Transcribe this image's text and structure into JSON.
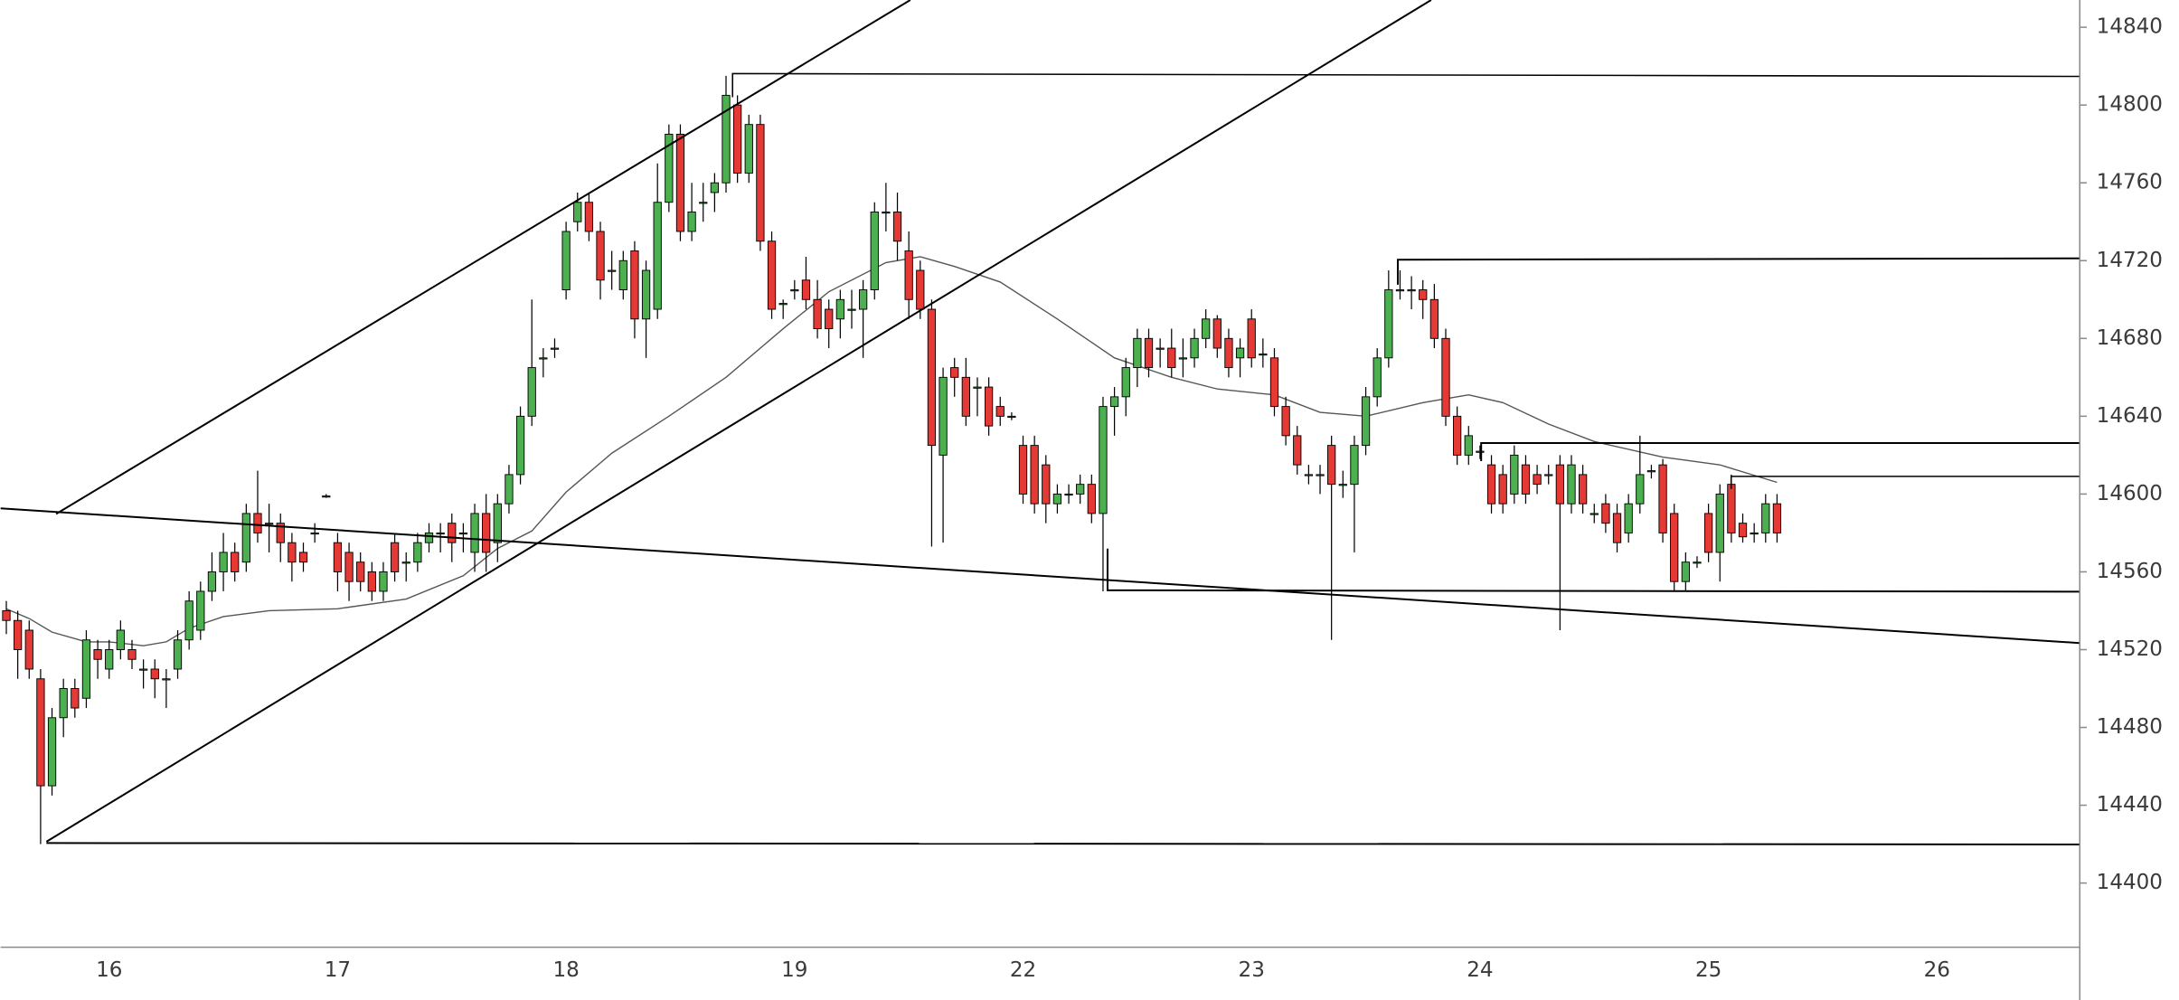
{
  "chart_data": {
    "type": "candlestick",
    "categories": [
      null,
      null,
      null,
      null,
      null,
      null,
      null,
      null,
      null,
      "16",
      null,
      null,
      null,
      null,
      null,
      null,
      null,
      null,
      null,
      null,
      null,
      null,
      null,
      null,
      null,
      null,
      null,
      null,
      null,
      "17",
      null,
      null,
      null,
      null,
      null,
      null,
      null,
      null,
      null,
      null,
      null,
      null,
      null,
      null,
      null,
      null,
      null,
      null,
      null,
      "18",
      null,
      null,
      null,
      null,
      null,
      null,
      null,
      null,
      null,
      null,
      null,
      null,
      null,
      null,
      null,
      null,
      null,
      null,
      null,
      "19",
      null,
      null,
      null,
      null,
      null,
      null,
      null,
      null,
      null,
      null,
      null,
      null,
      null,
      null,
      null,
      null,
      null,
      null,
      null,
      "22",
      null,
      null,
      null,
      null,
      null,
      null,
      null,
      null,
      null,
      null,
      null,
      null,
      null,
      null,
      null,
      null,
      null,
      null,
      null,
      "23",
      null,
      null,
      null,
      null,
      null,
      null,
      null,
      null,
      null,
      null,
      null,
      null,
      null,
      null,
      null,
      null,
      null,
      null,
      null,
      "24",
      null,
      null,
      null,
      null,
      null,
      null,
      null,
      null,
      null,
      null,
      null,
      null,
      null,
      null,
      null,
      null,
      null,
      null,
      null,
      "25",
      null,
      null,
      null,
      null,
      null,
      null,
      null,
      null,
      null,
      null,
      null,
      null,
      null,
      null,
      null,
      null,
      null,
      null,
      null,
      "26",
      null,
      null,
      null,
      null,
      null,
      null,
      null,
      null,
      null,
      null,
      null,
      null
    ],
    "open": [
      14540,
      14535,
      14530,
      14505,
      14450,
      14485,
      14500,
      14495,
      14520,
      14510,
      14520,
      14520,
      14510,
      14510,
      14505,
      14510,
      14525,
      14530,
      14550,
      14560,
      14570,
      14565,
      14590,
      14585,
      14585,
      14575,
      14570,
      14580,
      14599,
      14575,
      14570,
      14565,
      14560,
      14550,
      14575,
      14565,
      14565,
      14575,
      14580,
      14585,
      14580,
      14570,
      14590,
      14575,
      14595,
      14610,
      14640,
      14670,
      14675,
      14705,
      14740,
      14750,
      14735,
      14715,
      14705,
      14725,
      14690,
      14695,
      14750,
      14785,
      14735,
      14750,
      14755,
      14760,
      14800,
      14765,
      14790,
      14730,
      14698,
      14705,
      14710,
      14700,
      14695,
      14690,
      14695,
      14695,
      14705,
      14745,
      14745,
      14725,
      14715,
      14695,
      14620,
      14665,
      14660,
      14655,
      14655,
      14645,
      14640,
      14625,
      14625,
      14615,
      14595,
      14600,
      14600,
      14605,
      14590,
      14645,
      14650,
      14665,
      14680,
      14675,
      14675,
      14670,
      14670,
      14680,
      14690,
      14680,
      14670,
      14690,
      14672,
      14670,
      14645,
      14630,
      14610,
      14610,
      14625,
      14605,
      14605,
      14625,
      14650,
      14670,
      14705,
      14705,
      14705,
      14700,
      14680,
      14640,
      14620,
      14622,
      14615,
      14610,
      14600,
      14615,
      14610,
      14610,
      14615,
      14595,
      14610,
      14590,
      14595,
      14590,
      14580,
      14595,
      14612,
      14615,
      14590,
      14555,
      14565,
      14590,
      14570,
      14605,
      14585,
      14580,
      14580,
      14595,
      null,
      null,
      null,
      null,
      null,
      null,
      null,
      null,
      null,
      null,
      null,
      null,
      null,
      null,
      null,
      null,
      null,
      null,
      null,
      null,
      null,
      null,
      null,
      null,
      null,
      null
    ],
    "high": [
      14545,
      14540,
      14535,
      14510,
      14490,
      14505,
      14505,
      14530,
      14525,
      14525,
      14535,
      14525,
      14515,
      14515,
      14510,
      14530,
      14550,
      14555,
      14570,
      14580,
      14575,
      14595,
      14612,
      14595,
      14590,
      14580,
      14575,
      14585,
      14600,
      14580,
      14575,
      14570,
      14565,
      14565,
      14580,
      14570,
      14580,
      14585,
      14585,
      14590,
      14585,
      14595,
      14600,
      14600,
      14615,
      14645,
      14700,
      14675,
      14680,
      14740,
      14755,
      14755,
      14740,
      14725,
      14725,
      14730,
      14720,
      14770,
      14790,
      14790,
      14760,
      14760,
      14765,
      14815,
      14805,
      14795,
      14795,
      14735,
      14700,
      14710,
      14722,
      14710,
      14700,
      14705,
      14705,
      14710,
      14750,
      14760,
      14755,
      14735,
      14720,
      14700,
      14665,
      14670,
      14670,
      14660,
      14660,
      14650,
      14642,
      14630,
      14630,
      14620,
      14605,
      14605,
      14610,
      14610,
      14650,
      14655,
      14670,
      14685,
      14685,
      14680,
      14685,
      14680,
      14685,
      14695,
      14692,
      14685,
      14680,
      14695,
      14680,
      14675,
      14650,
      14635,
      14615,
      14615,
      14630,
      14612,
      14630,
      14655,
      14675,
      14715,
      14715,
      14712,
      14710,
      14708,
      14685,
      14645,
      14635,
      14625,
      14620,
      14615,
      14625,
      14620,
      14615,
      14615,
      14620,
      14620,
      14615,
      14595,
      14600,
      14595,
      14600,
      14630,
      14615,
      14618,
      14595,
      14570,
      14568,
      14595,
      14605,
      14610,
      14590,
      14585,
      14600,
      14600,
      null,
      null,
      null,
      null,
      null,
      null,
      null,
      null,
      null,
      null,
      null,
      null,
      null,
      null,
      null,
      null,
      null,
      null,
      null,
      null,
      null,
      null,
      null,
      null,
      null,
      null
    ],
    "low": [
      14528,
      14505,
      14505,
      14420,
      14445,
      14475,
      14485,
      14490,
      14505,
      14505,
      14515,
      14510,
      14500,
      14495,
      14490,
      14505,
      14520,
      14525,
      14545,
      14550,
      14555,
      14560,
      14575,
      14570,
      14565,
      14555,
      14560,
      14575,
      14598,
      14550,
      14545,
      14550,
      14545,
      14545,
      14555,
      14555,
      14560,
      14570,
      14570,
      14565,
      14570,
      14560,
      14560,
      14565,
      14590,
      14605,
      14635,
      14660,
      14670,
      14700,
      14735,
      14730,
      14700,
      14705,
      14700,
      14680,
      14670,
      14690,
      14745,
      14730,
      14730,
      14740,
      14745,
      14755,
      14760,
      14760,
      14725,
      14690,
      14690,
      14700,
      14695,
      14680,
      14675,
      14680,
      14685,
      14670,
      14700,
      14735,
      14720,
      14690,
      14690,
      14573,
      14575,
      14650,
      14635,
      14640,
      14630,
      14635,
      14638,
      14595,
      14590,
      14585,
      14590,
      14595,
      14595,
      14585,
      14550,
      14630,
      14640,
      14655,
      14660,
      14665,
      14660,
      14660,
      14665,
      14675,
      14670,
      14660,
      14660,
      14665,
      14665,
      14640,
      14625,
      14610,
      14605,
      14600,
      14525,
      14598,
      14570,
      14620,
      14645,
      14665,
      14700,
      14695,
      14690,
      14675,
      14635,
      14615,
      14615,
      14618,
      14590,
      14590,
      14595,
      14595,
      14600,
      14605,
      14530,
      14590,
      14590,
      14585,
      14580,
      14570,
      14575,
      14590,
      14608,
      14575,
      14550,
      14550,
      14562,
      14565,
      14555,
      14575,
      14575,
      14575,
      14575,
      14575,
      null,
      null,
      null,
      null,
      null,
      null,
      null,
      null,
      null,
      null,
      null,
      null,
      null,
      null,
      null,
      null,
      null,
      null,
      null,
      null,
      null,
      null,
      null,
      null,
      null,
      null
    ],
    "close": [
      14535,
      14520,
      14510,
      14450,
      14485,
      14500,
      14490,
      14525,
      14515,
      14520,
      14530,
      14515,
      14510,
      14505,
      14505,
      14525,
      14545,
      14550,
      14560,
      14570,
      14560,
      14590,
      14580,
      14585,
      14575,
      14565,
      14565,
      14580,
      14599,
      14560,
      14555,
      14555,
      14550,
      14560,
      14560,
      14565,
      14575,
      14580,
      14580,
      14575,
      14580,
      14590,
      14570,
      14595,
      14610,
      14640,
      14665,
      14670,
      14675,
      14735,
      14750,
      14735,
      14710,
      14715,
      14720,
      14690,
      14715,
      14750,
      14785,
      14735,
      14745,
      14750,
      14760,
      14805,
      14765,
      14790,
      14730,
      14695,
      14698,
      14705,
      14700,
      14685,
      14685,
      14700,
      14695,
      14705,
      14745,
      14745,
      14730,
      14700,
      14695,
      14625,
      14660,
      14660,
      14640,
      14655,
      14635,
      14640,
      14640,
      14600,
      14595,
      14595,
      14600,
      14600,
      14605,
      14590,
      14645,
      14650,
      14665,
      14680,
      14665,
      14675,
      14665,
      14670,
      14680,
      14690,
      14675,
      14665,
      14675,
      14670,
      14672,
      14645,
      14630,
      14615,
      14610,
      14610,
      14605,
      14605,
      14625,
      14650,
      14670,
      14705,
      14705,
      14705,
      14700,
      14680,
      14640,
      14620,
      14630,
      14622,
      14595,
      14595,
      14620,
      14600,
      14605,
      14610,
      14595,
      14615,
      14595,
      14590,
      14585,
      14575,
      14595,
      14610,
      14612,
      14580,
      14555,
      14565,
      14565,
      14570,
      14600,
      14580,
      14578,
      14580,
      14595,
      14580,
      null,
      null,
      null,
      null,
      null,
      null,
      null,
      null,
      null,
      null,
      null,
      null,
      null,
      null,
      null,
      null,
      null,
      null,
      null,
      null,
      null,
      null,
      null,
      null,
      null,
      null
    ],
    "up_color": "#4caf50",
    "down_color": "#e53935",
    "wick_color": "#000000",
    "ma": {
      "color": "#555555",
      "x": [
        0,
        2,
        4,
        7,
        9,
        12,
        14,
        16,
        19,
        23,
        29,
        35,
        40,
        43,
        46,
        49,
        53,
        58,
        63,
        68,
        72,
        77,
        80,
        83,
        87,
        92,
        97,
        102,
        106,
        111,
        115,
        119,
        124,
        128,
        131,
        135,
        139,
        145,
        150,
        155
      ],
      "values": [
        14541,
        14536,
        14529,
        14524,
        14524,
        14522,
        14524,
        14531,
        14537,
        14540,
        14541,
        14546,
        14558,
        14572,
        14581,
        14601,
        14621,
        14640,
        14660,
        14685,
        14704,
        14719,
        14722,
        14717,
        14709,
        14690,
        14670,
        14660,
        14654,
        14651,
        14642,
        14640,
        14647,
        14651,
        14647,
        14636,
        14627,
        14619,
        14615,
        14606
      ]
    },
    "ylim": [
      14367,
      14854
    ],
    "yticks": [
      14400,
      14440,
      14480,
      14520,
      14560,
      14600,
      14640,
      14680,
      14720,
      14760,
      14800,
      14840
    ],
    "grid": false
  }
}
